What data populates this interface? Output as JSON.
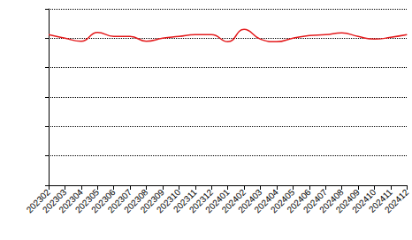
{
  "chart_data": {
    "type": "line",
    "categories": [
      "202302",
      "202303",
      "202304",
      "202305",
      "202306",
      "202307",
      "202308",
      "202309",
      "202310",
      "202311",
      "202312",
      "202401",
      "202402",
      "202403",
      "202404",
      "202405",
      "202406",
      "202407",
      "202408",
      "202409",
      "202410",
      "202411",
      "202412"
    ],
    "values": [
      5.12,
      5.0,
      4.9,
      5.2,
      5.06,
      5.06,
      4.9,
      5.0,
      5.06,
      5.12,
      5.12,
      4.88,
      5.3,
      4.97,
      4.88,
      5.0,
      5.09,
      5.12,
      5.18,
      5.06,
      4.97,
      5.03,
      5.12
    ],
    "color": "#e41a1c",
    "ylim": [
      0,
      6
    ],
    "yticks": [
      0,
      1,
      2,
      3,
      4,
      5,
      6
    ],
    "grid": true,
    "tick_labels": "x"
  }
}
